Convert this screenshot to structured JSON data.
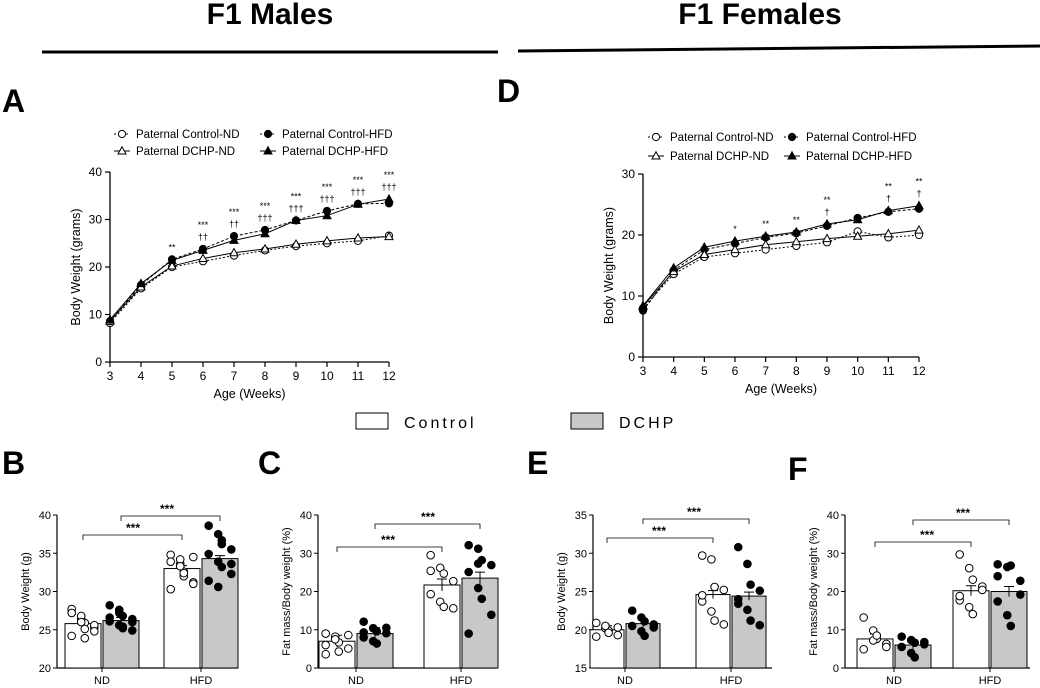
{
  "headers": {
    "left": "F1 Males",
    "right": "F1 Females"
  },
  "global_legend": [
    {
      "label": "Control",
      "color": "#ffffff"
    },
    {
      "label": "DCHP",
      "color": "#c8c8c8"
    }
  ],
  "chart_data": [
    {
      "panel": "A",
      "type": "line",
      "xlabel": "Age (Weeks)",
      "ylabel": "Body Weight (grams)",
      "x": [
        3,
        4,
        5,
        6,
        7,
        8,
        9,
        10,
        11,
        12
      ],
      "xlim": [
        3,
        12
      ],
      "ylim": [
        0,
        40
      ],
      "yticks": [
        0,
        10,
        20,
        30,
        40
      ],
      "legend": [
        "Paternal Control-ND",
        "Paternal Control-HFD",
        "Paternal DCHP-ND",
        "Paternal DCHP-HFD"
      ],
      "series": [
        {
          "name": "Paternal Control-ND",
          "marker": "circle-open",
          "values": [
            8.2,
            15.5,
            20.0,
            21.2,
            22.4,
            23.5,
            24.4,
            25.0,
            25.5,
            26.6
          ]
        },
        {
          "name": "Paternal Control-HFD",
          "marker": "circle-filled",
          "values": [
            8.6,
            16.2,
            21.6,
            23.8,
            26.5,
            27.8,
            29.8,
            31.8,
            33.3,
            33.4
          ]
        },
        {
          "name": "Paternal DCHP-ND",
          "marker": "triangle-open",
          "values": [
            8.6,
            15.8,
            20.2,
            21.8,
            23.0,
            23.8,
            24.8,
            25.5,
            26.1,
            26.4
          ]
        },
        {
          "name": "Paternal DCHP-HFD",
          "marker": "triangle-filled",
          "values": [
            8.9,
            16.5,
            21.4,
            23.5,
            25.6,
            27.0,
            29.8,
            30.8,
            33.2,
            34.3
          ]
        }
      ],
      "annotations": [
        {
          "x": 5,
          "top": "**",
          "bottom": ""
        },
        {
          "x": 6,
          "top": "***",
          "bottom": "††"
        },
        {
          "x": 7,
          "top": "***",
          "bottom": "††"
        },
        {
          "x": 8,
          "top": "***",
          "bottom": "†††"
        },
        {
          "x": 9,
          "top": "***",
          "bottom": "†††"
        },
        {
          "x": 10,
          "top": "***",
          "bottom": "†††"
        },
        {
          "x": 11,
          "top": "***",
          "bottom": "†††"
        },
        {
          "x": 12,
          "top": "***",
          "bottom": "†††"
        }
      ]
    },
    {
      "panel": "D",
      "type": "line",
      "xlabel": "Age (Weeks)",
      "ylabel": "Body Weight (grams)",
      "x": [
        3,
        4,
        5,
        6,
        7,
        8,
        9,
        10,
        11,
        12
      ],
      "xlim": [
        3,
        12
      ],
      "ylim": [
        0,
        30
      ],
      "yticks": [
        0,
        10,
        20,
        30
      ],
      "legend": [
        "Paternal Control-ND",
        "Paternal Control-HFD",
        "Paternal DCHP-ND",
        "Paternal DCHP-HFD"
      ],
      "series": [
        {
          "name": "Paternal Control-ND",
          "marker": "circle-open",
          "values": [
            8.0,
            13.6,
            16.4,
            17.0,
            17.6,
            18.2,
            18.8,
            20.6,
            19.6,
            20.0
          ]
        },
        {
          "name": "Paternal Control-HFD",
          "marker": "circle-filled",
          "values": [
            7.6,
            14.2,
            17.6,
            18.6,
            19.6,
            20.3,
            21.5,
            22.8,
            23.8,
            24.3
          ]
        },
        {
          "name": "Paternal DCHP-ND",
          "marker": "triangle-open",
          "values": [
            8.3,
            14.0,
            16.8,
            17.6,
            18.4,
            18.9,
            19.4,
            19.8,
            20.2,
            20.8
          ]
        },
        {
          "name": "Paternal DCHP-HFD",
          "marker": "triangle-filled",
          "values": [
            8.4,
            14.6,
            18.0,
            19.0,
            19.8,
            20.5,
            21.8,
            22.5,
            24.0,
            24.8
          ]
        }
      ],
      "annotations": [
        {
          "x": 6,
          "top": "*",
          "bottom": ""
        },
        {
          "x": 7,
          "top": "**",
          "bottom": ""
        },
        {
          "x": 8,
          "top": "**",
          "bottom": ""
        },
        {
          "x": 9,
          "top": "**",
          "bottom": "†"
        },
        {
          "x": 11,
          "top": "**",
          "bottom": "†"
        },
        {
          "x": 12,
          "top": "**",
          "bottom": "†"
        }
      ]
    },
    {
      "panel": "B",
      "type": "bar",
      "ylabel": "Body Weight (g)",
      "categories": [
        "ND",
        "HFD"
      ],
      "ylim": [
        20,
        40
      ],
      "yticks": [
        20,
        25,
        30,
        35,
        40
      ],
      "series": [
        {
          "name": "Control",
          "values": [
            25.8,
            33.0
          ],
          "points": [
            [
              27.7,
              26.4,
              25.9,
              25.3,
              24.2,
              26.8,
              23.9,
              25.6,
              27.2,
              26.0,
              25.1,
              24.8
            ],
            [
              34.8,
              33.6,
              32.0,
              31.2,
              33.9,
              34.2,
              32.6,
              31.0,
              30.3,
              33.3,
              32.4,
              34.5
            ]
          ]
        },
        {
          "name": "DCHP",
          "values": [
            26.2,
            34.3
          ],
          "points": [
            [
              28.2,
              27.2,
              26.8,
              26.4,
              26.1,
              25.6,
              25.2,
              24.9,
              26.6,
              27.6,
              25.4,
              26.0
            ],
            [
              38.6,
              37.5,
              36.7,
              35.5,
              34.9,
              33.9,
              33.2,
              32.3,
              31.4,
              30.6,
              36.2,
              33.6
            ]
          ]
        }
      ],
      "significance": [
        {
          "label": "***",
          "from": "Control-ND",
          "to": "Control-HFD"
        },
        {
          "label": "***",
          "from": "DCHP-ND",
          "to": "DCHP-HFD"
        }
      ]
    },
    {
      "panel": "C",
      "type": "bar",
      "ylabel": "Fat mass/Body weight (%)",
      "categories": [
        "ND",
        "HFD"
      ],
      "ylim": [
        0,
        40
      ],
      "yticks": [
        0,
        10,
        20,
        30,
        40
      ],
      "series": [
        {
          "name": "Control",
          "values": [
            7.0,
            21.7
          ],
          "points": [
            [
              9.0,
              8.2,
              6.7,
              5.1,
              3.6,
              7.5,
              4.3,
              8.6,
              6.0
            ],
            [
              29.5,
              26.2,
              24.7,
              22.7,
              19.3,
              17.3,
              16.0,
              15.6,
              25.4
            ]
          ]
        },
        {
          "name": "DCHP",
          "values": [
            9.0,
            23.5
          ],
          "points": [
            [
              12.1,
              10.4,
              9.6,
              9.1,
              8.0,
              7.0,
              6.4,
              10.5,
              9.3
            ],
            [
              32.1,
              31.2,
              28.2,
              26.9,
              25.1,
              20.9,
              18.1,
              13.9,
              9.0,
              27.3
            ]
          ]
        }
      ],
      "significance": [
        {
          "label": "***",
          "from": "Control-ND",
          "to": "Control-HFD"
        },
        {
          "label": "***",
          "from": "DCHP-ND",
          "to": "DCHP-HFD"
        }
      ]
    },
    {
      "panel": "E",
      "type": "bar",
      "ylabel": "Body Weight (g)",
      "categories": [
        "ND",
        "HFD"
      ],
      "ylim": [
        15,
        35
      ],
      "yticks": [
        15,
        20,
        25,
        30,
        35
      ],
      "series": [
        {
          "name": "Control",
          "values": [
            20.0,
            24.6
          ],
          "points": [
            [
              20.9,
              20.2,
              19.9,
              19.3,
              19.1,
              20.5,
              19.6,
              20.3
            ],
            [
              29.7,
              29.2,
              25.6,
              25.2,
              23.7,
              22.4,
              21.2,
              20.7,
              24.5
            ]
          ]
        },
        {
          "name": "DCHP",
          "values": [
            20.8,
            24.4
          ],
          "points": [
            [
              22.5,
              21.6,
              21.1,
              20.7,
              20.5,
              19.8,
              19.2,
              20.3
            ],
            [
              30.8,
              28.6,
              25.9,
              25.1,
              24.0,
              22.6,
              21.2,
              20.6,
              23.4
            ]
          ]
        }
      ],
      "significance": [
        {
          "label": "***",
          "from": "Control-ND",
          "to": "Control-HFD"
        },
        {
          "label": "***",
          "from": "DCHP-ND",
          "to": "DCHP-HFD"
        }
      ]
    },
    {
      "panel": "F",
      "type": "bar",
      "ylabel": "Fat mass/Body weight (%)",
      "categories": [
        "ND",
        "HFD"
      ],
      "ylim": [
        0,
        40
      ],
      "yticks": [
        0,
        10,
        20,
        30,
        40
      ],
      "series": [
        {
          "name": "Control",
          "values": [
            7.6,
            20.2
          ],
          "points": [
            [
              13.2,
              9.8,
              7.6,
              6.3,
              4.9,
              7.2,
              8.5,
              5.5
            ],
            [
              29.7,
              26.1,
              23.1,
              21.3,
              17.7,
              15.9,
              14.1,
              20.4,
              18.8
            ]
          ]
        },
        {
          "name": "DCHP",
          "values": [
            6.0,
            20.0
          ],
          "points": [
            [
              8.2,
              7.3,
              6.6,
              6.2,
              5.5,
              3.9,
              2.8,
              6.8
            ],
            [
              27.1,
              26.4,
              26.8,
              19.2,
              17.4,
              13.8,
              11.0,
              22.8,
              24.0
            ]
          ]
        }
      ],
      "significance": [
        {
          "label": "***",
          "from": "Control-ND",
          "to": "Control-HFD"
        },
        {
          "label": "***",
          "from": "DCHP-ND",
          "to": "DCHP-HFD"
        }
      ]
    }
  ]
}
